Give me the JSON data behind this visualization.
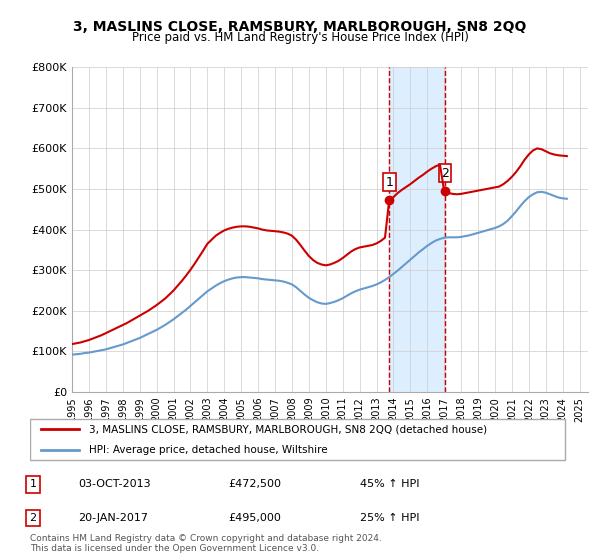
{
  "title": "3, MASLINS CLOSE, RAMSBURY, MARLBOROUGH, SN8 2QQ",
  "subtitle": "Price paid vs. HM Land Registry's House Price Index (HPI)",
  "legend_line1": "3, MASLINS CLOSE, RAMSBURY, MARLBOROUGH, SN8 2QQ (detached house)",
  "legend_line2": "HPI: Average price, detached house, Wiltshire",
  "footnote": "Contains HM Land Registry data © Crown copyright and database right 2024.\nThis data is licensed under the Open Government Licence v3.0.",
  "sale1_label": "1",
  "sale1_date": "03-OCT-2013",
  "sale1_price": "£472,500",
  "sale1_hpi": "45% ↑ HPI",
  "sale2_label": "2",
  "sale2_date": "20-JAN-2017",
  "sale2_price": "£495,000",
  "sale2_hpi": "25% ↑ HPI",
  "sale1_x": 2013.75,
  "sale2_x": 2017.05,
  "highlight_xmin": 2013.75,
  "highlight_xmax": 2017.05,
  "ylim_bottom": 0,
  "ylim_top": 800000,
  "xlim_left": 1995,
  "xlim_right": 2025.5,
  "red_color": "#cc0000",
  "blue_color": "#6699cc",
  "highlight_color": "#ddeeff",
  "sale_marker_color": "#cc0000",
  "yticks": [
    0,
    100000,
    200000,
    300000,
    400000,
    500000,
    600000,
    700000,
    800000
  ],
  "ytick_labels": [
    "£0",
    "£100K",
    "£200K",
    "£300K",
    "£400K",
    "£500K",
    "£600K",
    "£700K",
    "£800K"
  ],
  "xticks": [
    1995,
    1996,
    1997,
    1998,
    1999,
    2000,
    2001,
    2002,
    2003,
    2004,
    2005,
    2006,
    2007,
    2008,
    2009,
    2010,
    2011,
    2012,
    2013,
    2014,
    2015,
    2016,
    2017,
    2018,
    2019,
    2020,
    2021,
    2022,
    2023,
    2024,
    2025
  ],
  "red_x": [
    1995.0,
    1995.25,
    1995.5,
    1995.75,
    1996.0,
    1996.25,
    1996.5,
    1996.75,
    1997.0,
    1997.25,
    1997.5,
    1997.75,
    1998.0,
    1998.25,
    1998.5,
    1998.75,
    1999.0,
    1999.25,
    1999.5,
    1999.75,
    2000.0,
    2000.25,
    2000.5,
    2000.75,
    2001.0,
    2001.25,
    2001.5,
    2001.75,
    2002.0,
    2002.25,
    2002.5,
    2002.75,
    2003.0,
    2003.25,
    2003.5,
    2003.75,
    2004.0,
    2004.25,
    2004.5,
    2004.75,
    2005.0,
    2005.25,
    2005.5,
    2005.75,
    2006.0,
    2006.25,
    2006.5,
    2006.75,
    2007.0,
    2007.25,
    2007.5,
    2007.75,
    2008.0,
    2008.25,
    2008.5,
    2008.75,
    2009.0,
    2009.25,
    2009.5,
    2009.75,
    2010.0,
    2010.25,
    2010.5,
    2010.75,
    2011.0,
    2011.25,
    2011.5,
    2011.75,
    2012.0,
    2012.25,
    2012.5,
    2012.75,
    2013.0,
    2013.25,
    2013.5,
    2013.75,
    2014.0,
    2014.25,
    2014.5,
    2014.75,
    2015.0,
    2015.25,
    2015.5,
    2015.75,
    2016.0,
    2016.25,
    2016.5,
    2016.75,
    2017.0,
    2017.25,
    2017.5,
    2017.75,
    2018.0,
    2018.25,
    2018.5,
    2018.75,
    2019.0,
    2019.25,
    2019.5,
    2019.75,
    2020.0,
    2020.25,
    2020.5,
    2020.75,
    2021.0,
    2021.25,
    2021.5,
    2021.75,
    2022.0,
    2022.25,
    2022.5,
    2022.75,
    2023.0,
    2023.25,
    2023.5,
    2023.75,
    2024.0,
    2024.25
  ],
  "red_y": [
    118000,
    120000,
    122000,
    125000,
    128000,
    132000,
    136000,
    140000,
    145000,
    150000,
    155000,
    160000,
    165000,
    170000,
    176000,
    182000,
    188000,
    194000,
    200000,
    207000,
    214000,
    222000,
    230000,
    240000,
    250000,
    262000,
    274000,
    287000,
    301000,
    316000,
    332000,
    348000,
    365000,
    375000,
    385000,
    392000,
    398000,
    402000,
    405000,
    407000,
    408000,
    408000,
    407000,
    405000,
    403000,
    400000,
    398000,
    397000,
    396000,
    395000,
    393000,
    390000,
    385000,
    375000,
    362000,
    348000,
    335000,
    325000,
    318000,
    314000,
    312000,
    314000,
    318000,
    323000,
    330000,
    338000,
    346000,
    352000,
    356000,
    358000,
    360000,
    362000,
    366000,
    372000,
    380000,
    472500,
    480000,
    490000,
    498000,
    505000,
    512000,
    520000,
    528000,
    535000,
    543000,
    550000,
    556000,
    560000,
    495000,
    490000,
    488000,
    487000,
    488000,
    490000,
    492000,
    494000,
    496000,
    498000,
    500000,
    502000,
    504000,
    506000,
    512000,
    520000,
    530000,
    542000,
    556000,
    572000,
    585000,
    595000,
    600000,
    598000,
    593000,
    588000,
    585000,
    583000,
    582000,
    581000
  ],
  "blue_x": [
    1995.0,
    1995.25,
    1995.5,
    1995.75,
    1996.0,
    1996.25,
    1996.5,
    1996.75,
    1997.0,
    1997.25,
    1997.5,
    1997.75,
    1998.0,
    1998.25,
    1998.5,
    1998.75,
    1999.0,
    1999.25,
    1999.5,
    1999.75,
    2000.0,
    2000.25,
    2000.5,
    2000.75,
    2001.0,
    2001.25,
    2001.5,
    2001.75,
    2002.0,
    2002.25,
    2002.5,
    2002.75,
    2003.0,
    2003.25,
    2003.5,
    2003.75,
    2004.0,
    2004.25,
    2004.5,
    2004.75,
    2005.0,
    2005.25,
    2005.5,
    2005.75,
    2006.0,
    2006.25,
    2006.5,
    2006.75,
    2007.0,
    2007.25,
    2007.5,
    2007.75,
    2008.0,
    2008.25,
    2008.5,
    2008.75,
    2009.0,
    2009.25,
    2009.5,
    2009.75,
    2010.0,
    2010.25,
    2010.5,
    2010.75,
    2011.0,
    2011.25,
    2011.5,
    2011.75,
    2012.0,
    2012.25,
    2012.5,
    2012.75,
    2013.0,
    2013.25,
    2013.5,
    2013.75,
    2014.0,
    2014.25,
    2014.5,
    2014.75,
    2015.0,
    2015.25,
    2015.5,
    2015.75,
    2016.0,
    2016.25,
    2016.5,
    2016.75,
    2017.0,
    2017.25,
    2017.5,
    2017.75,
    2018.0,
    2018.25,
    2018.5,
    2018.75,
    2019.0,
    2019.25,
    2019.5,
    2019.75,
    2020.0,
    2020.25,
    2020.5,
    2020.75,
    2021.0,
    2021.25,
    2021.5,
    2021.75,
    2022.0,
    2022.25,
    2022.5,
    2022.75,
    2023.0,
    2023.25,
    2023.5,
    2023.75,
    2024.0,
    2024.25
  ],
  "blue_y": [
    92000,
    93000,
    94000,
    96000,
    97000,
    99000,
    101000,
    103000,
    105000,
    108000,
    111000,
    114000,
    117000,
    121000,
    125000,
    129000,
    133000,
    138000,
    143000,
    148000,
    153000,
    159000,
    165000,
    172000,
    179000,
    187000,
    195000,
    203000,
    212000,
    221000,
    230000,
    239000,
    248000,
    255000,
    262000,
    268000,
    273000,
    277000,
    280000,
    282000,
    283000,
    283000,
    282000,
    281000,
    280000,
    278000,
    277000,
    276000,
    275000,
    274000,
    272000,
    269000,
    265000,
    258000,
    249000,
    240000,
    232000,
    226000,
    221000,
    218000,
    217000,
    219000,
    222000,
    226000,
    231000,
    237000,
    243000,
    248000,
    252000,
    255000,
    258000,
    261000,
    265000,
    270000,
    276000,
    283000,
    291000,
    299000,
    308000,
    317000,
    326000,
    335000,
    344000,
    352000,
    360000,
    367000,
    373000,
    377000,
    380000,
    381000,
    381000,
    381000,
    382000,
    384000,
    386000,
    389000,
    392000,
    395000,
    398000,
    401000,
    404000,
    408000,
    414000,
    422000,
    433000,
    445000,
    458000,
    470000,
    480000,
    487000,
    492000,
    493000,
    491000,
    487000,
    483000,
    479000,
    477000,
    476000
  ]
}
